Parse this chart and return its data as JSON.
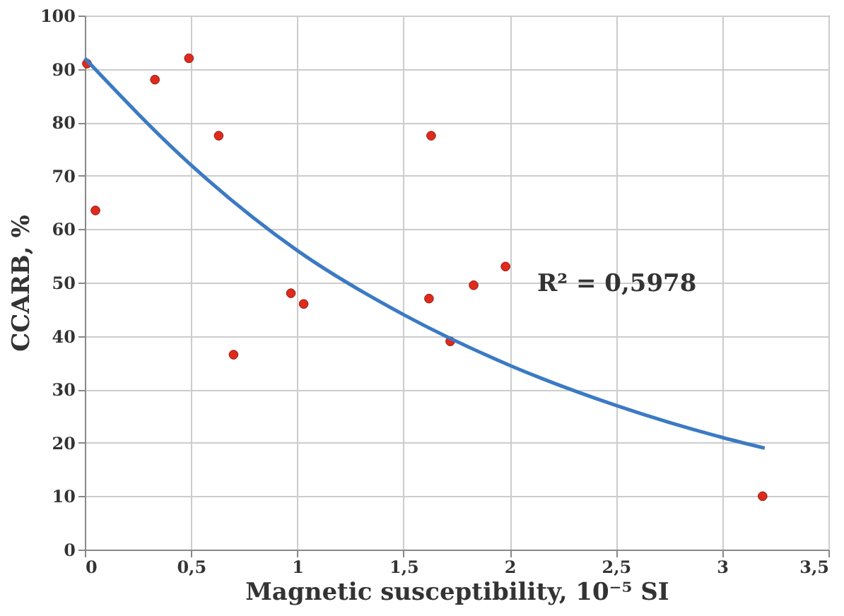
{
  "chart_data": {
    "type": "scatter",
    "xlabel": "Magnetic susceptibility, 10⁻⁵ SI",
    "ylabel": "CCARB, %",
    "xlim": [
      0,
      3.5
    ],
    "ylim": [
      0,
      100
    ],
    "xticks": [
      0,
      {
        "value": 0.5,
        "label": "0,5"
      },
      1,
      {
        "value": 1.5,
        "label": "1,5"
      },
      2,
      {
        "value": 2.5,
        "label": "2,5"
      },
      3,
      {
        "value": 3.5,
        "label": "3,5"
      }
    ],
    "yticks": [
      0,
      10,
      20,
      30,
      40,
      50,
      60,
      70,
      80,
      90,
      100
    ],
    "grid": true,
    "series": [
      {
        "color": "#e02a1c",
        "marker": "circle",
        "x": [
          0.01,
          0.05,
          0.33,
          0.49,
          0.63,
          0.7,
          0.97,
          1.03,
          1.62,
          1.63,
          1.72,
          1.83,
          1.98,
          3.19
        ],
        "values": [
          91,
          63.5,
          88,
          92,
          77.5,
          36.5,
          48,
          46,
          47,
          77.5,
          39,
          49.5,
          53,
          10
        ]
      },
      {
        "type": "line",
        "color": "#3b7ac4",
        "x": [
          0,
          0.5,
          1,
          1.5,
          2,
          2.5,
          3,
          3.2
        ],
        "values": [
          92,
          72,
          56,
          44,
          34.5,
          27,
          21,
          19
        ]
      }
    ],
    "annotations": [
      "R² = 0,5978"
    ]
  }
}
